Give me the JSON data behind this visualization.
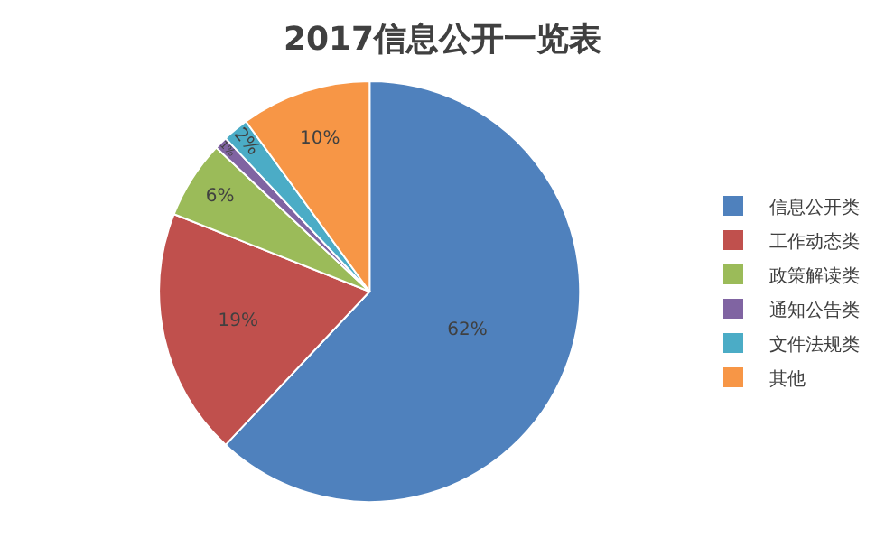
{
  "chart_data": {
    "type": "pie",
    "title": "2017信息公开一览表",
    "categories": [
      "信息公开类",
      "工作动态类",
      "政策解读类",
      "通知公告类",
      "文件法规类",
      "其他"
    ],
    "values": [
      62,
      19,
      6,
      1,
      2,
      10
    ],
    "value_labels": [
      "62%",
      "19%",
      "6%",
      "1%",
      "2%",
      "10%"
    ],
    "colors": [
      "#4f81bd",
      "#c0504d",
      "#9bbb59",
      "#8064a2",
      "#4bacc6",
      "#f79646"
    ],
    "legend": "right"
  }
}
